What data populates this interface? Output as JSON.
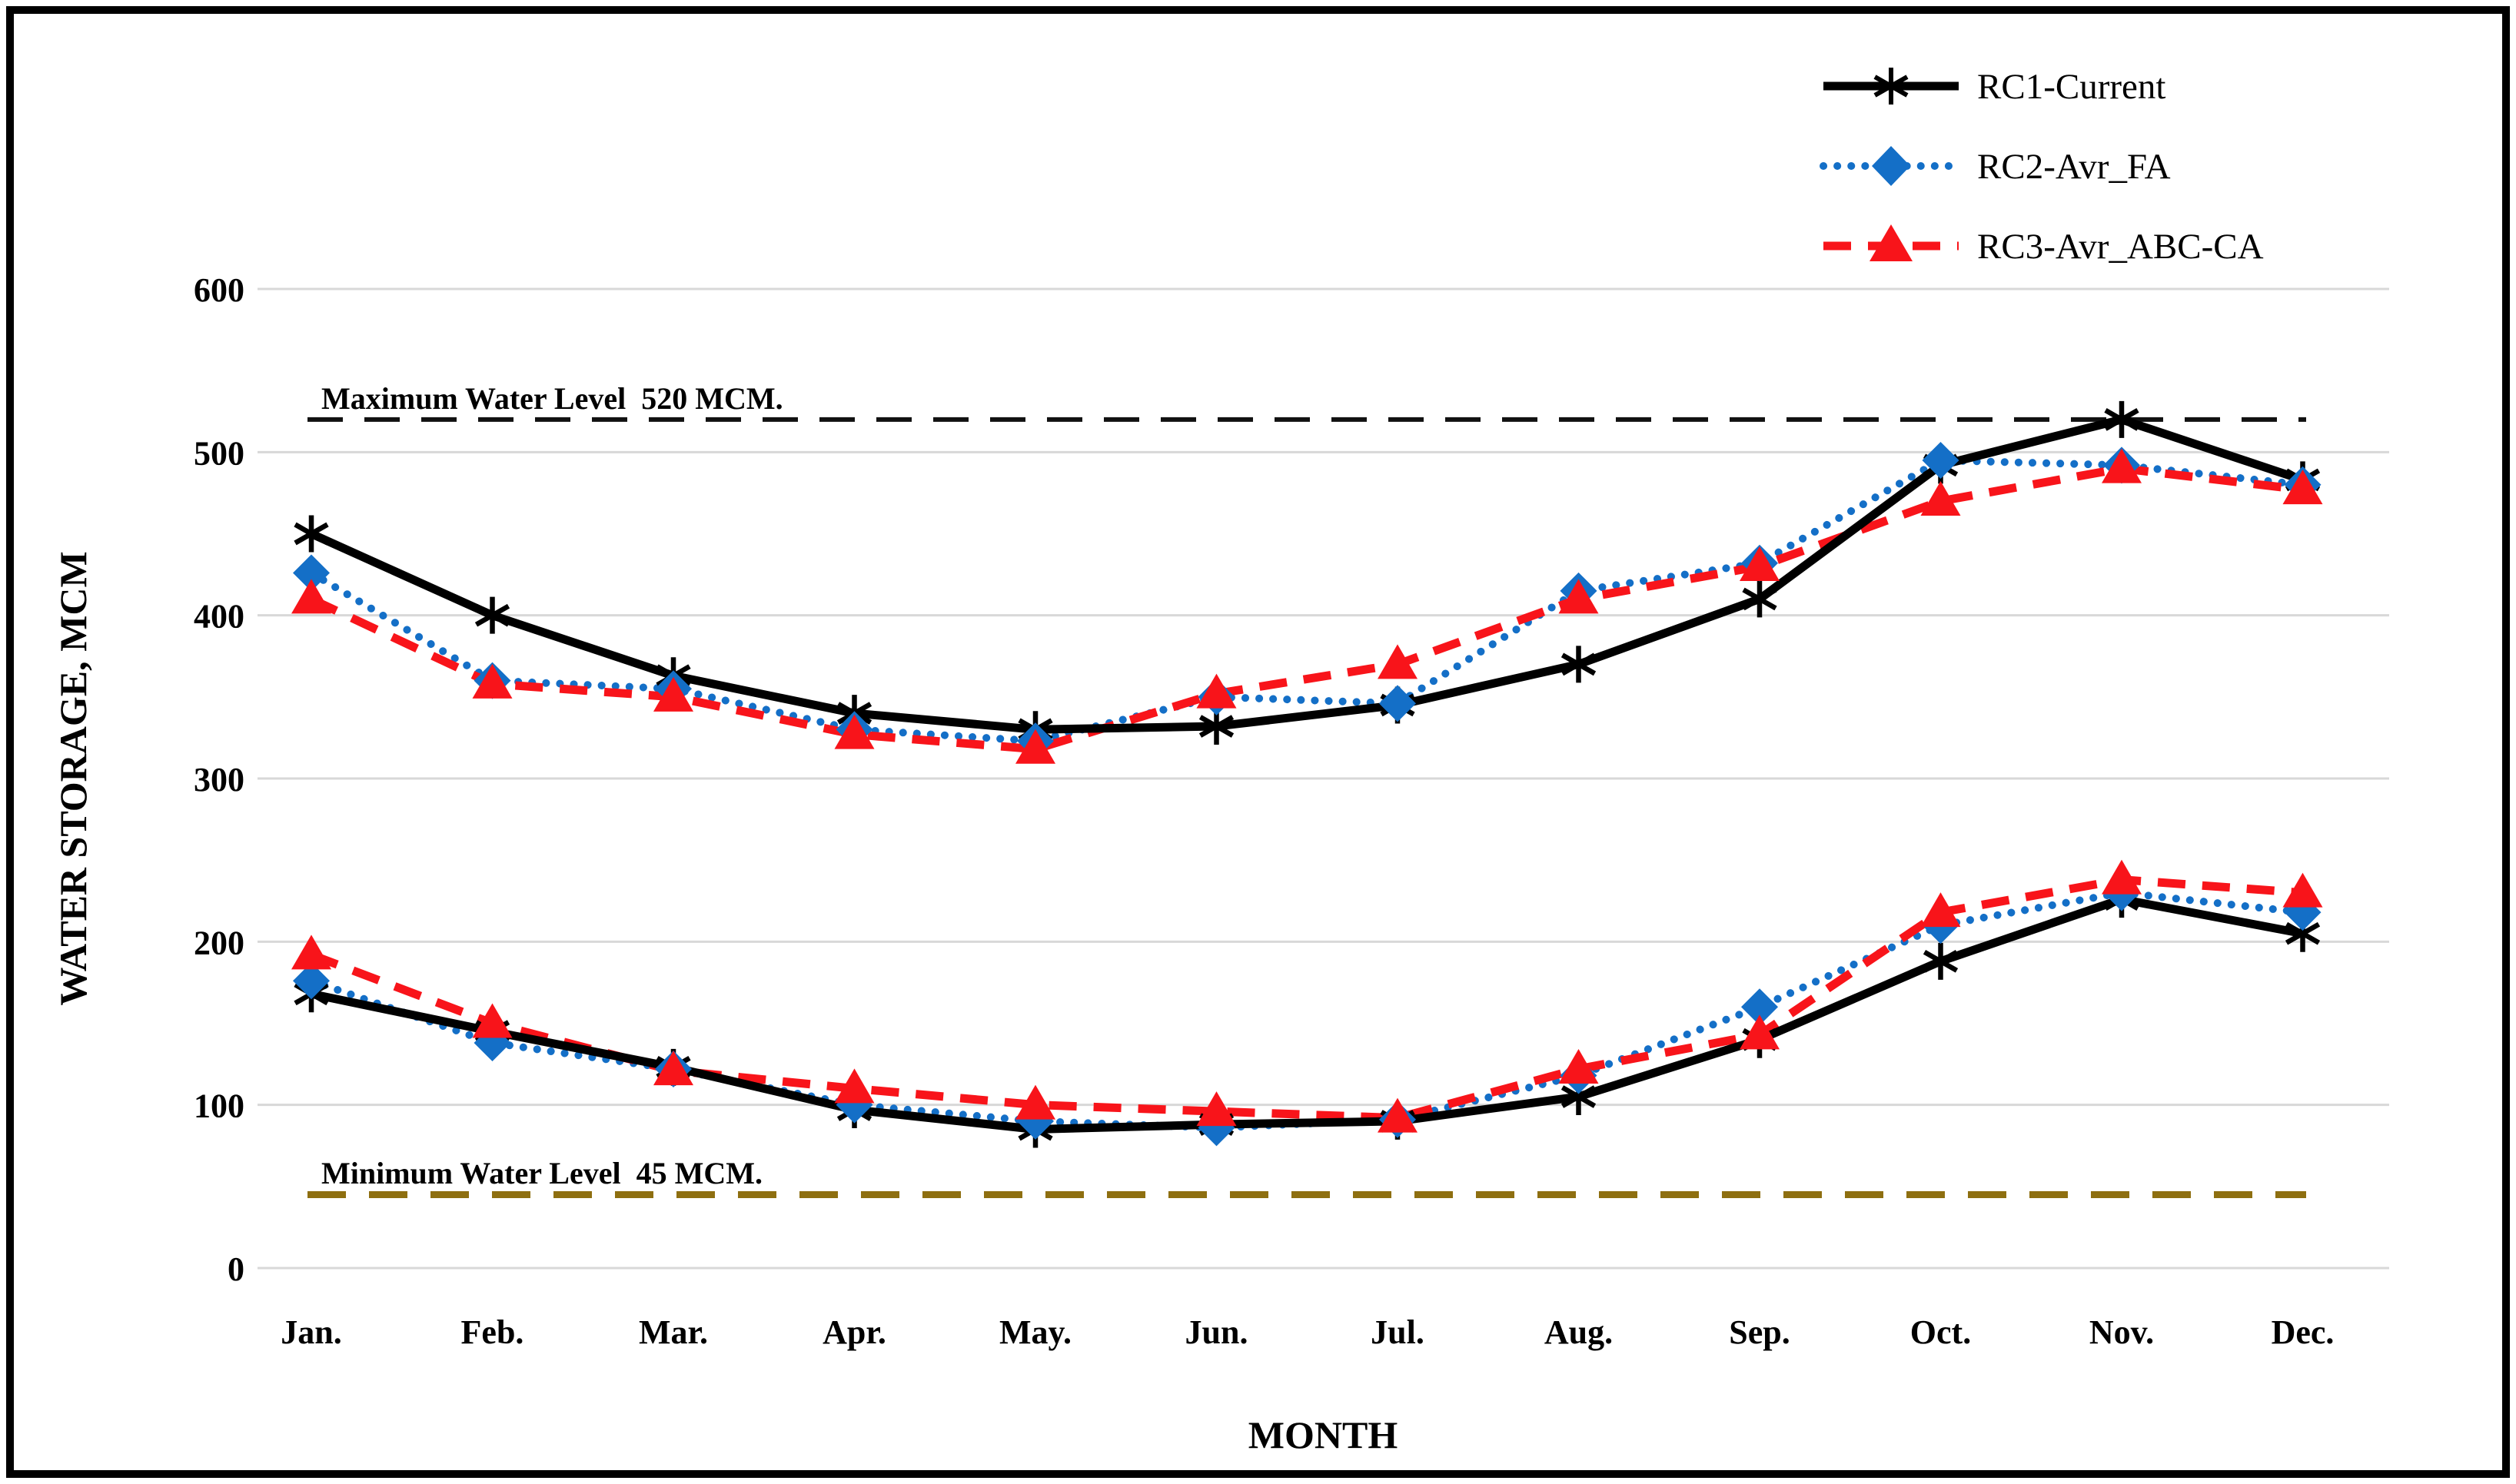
{
  "chart_data": {
    "type": "line",
    "title": "",
    "xlabel": "MONTH",
    "ylabel": "WATER STORAGE, MCM",
    "ylim": [
      0,
      600
    ],
    "yticks": [
      0,
      100,
      200,
      300,
      400,
      500,
      600
    ],
    "categories": [
      "Jan.",
      "Feb.",
      "Mar.",
      "Apr.",
      "May.",
      "Jun.",
      "Jul.",
      "Aug.",
      "Sep.",
      "Oct.",
      "Nov.",
      "Dec."
    ],
    "grid": "horizontal",
    "legend_position": "top-right",
    "note": "Each scenario is plotted as two curves: an upper (maximum storage) band and a lower (minimum storage) band.",
    "series": [
      {
        "name": "RC1-Current",
        "color": "#000000",
        "line_style": "solid",
        "marker": "asterisk",
        "upper_values": [
          450,
          400,
          363,
          340,
          330,
          332,
          345,
          370,
          410,
          492,
          520,
          483
        ],
        "lower_values": [
          168,
          145,
          123,
          97,
          85,
          88,
          90,
          105,
          140,
          188,
          226,
          205
        ]
      },
      {
        "name": "RC2-Avr_FA",
        "color": "#146fc7",
        "line_style": "dotted",
        "marker": "diamond",
        "upper_values": [
          426,
          360,
          355,
          330,
          323,
          350,
          346,
          415,
          432,
          495,
          492,
          480
        ],
        "lower_values": [
          176,
          138,
          122,
          100,
          90,
          86,
          91,
          118,
          160,
          210,
          230,
          218
        ]
      },
      {
        "name": "RC3-Avr_ABC-CA",
        "color": "#f8141a",
        "line_style": "dashed",
        "marker": "triangle",
        "upper_values": [
          410,
          358,
          350,
          327,
          318,
          352,
          370,
          410,
          430,
          470,
          490,
          477
        ],
        "lower_values": [
          192,
          150,
          121,
          110,
          100,
          96,
          92,
          122,
          143,
          218,
          238,
          230
        ]
      }
    ],
    "reference_lines": [
      {
        "label": "Maximum Water Level  520 MCM.",
        "value": 520,
        "color": "#111111",
        "style": "dashed"
      },
      {
        "label": "Minimum Water Level  45 MCM.",
        "value": 45,
        "color": "#8e6f10",
        "style": "dashed"
      }
    ]
  }
}
